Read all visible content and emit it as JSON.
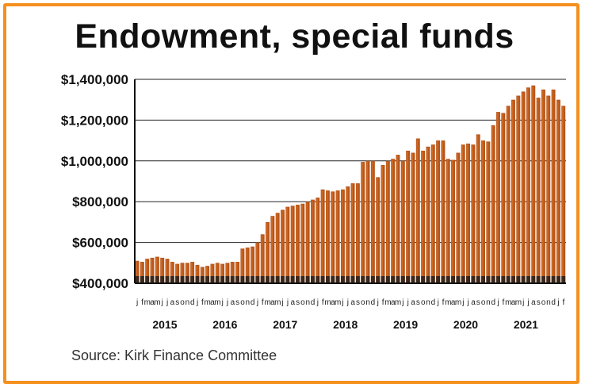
{
  "title": "Endowment, special funds",
  "source": "Source: Kirk Finance Committee",
  "colors": {
    "frame": "#f5901e",
    "bar": "#b8561a",
    "bar_light": "#e07a2e",
    "grid": "#222222"
  },
  "chart_data": {
    "type": "bar",
    "title": "Endowment, special funds",
    "xlabel": "",
    "ylabel": "",
    "ylim": [
      400000,
      1400000
    ],
    "yticks": [
      400000,
      600000,
      800000,
      1000000,
      1200000,
      1400000
    ],
    "ytick_labels": [
      "$400,000",
      "$600,000",
      "$800,000",
      "$1,000,000",
      "$1,200,000",
      "$1,400,000"
    ],
    "grid": true,
    "years": [
      "2015",
      "2016",
      "2017",
      "2018",
      "2019",
      "2020",
      "2021"
    ],
    "month_labels": [
      "j",
      "f",
      "m",
      "a",
      "m",
      "j",
      "j",
      "a",
      "s",
      "o",
      "n",
      "d"
    ],
    "values": [
      510000,
      505000,
      520000,
      525000,
      530000,
      525000,
      520000,
      505000,
      495000,
      500000,
      500000,
      505000,
      490000,
      480000,
      485000,
      495000,
      500000,
      495000,
      500000,
      505000,
      505000,
      570000,
      575000,
      580000,
      600000,
      640000,
      700000,
      730000,
      745000,
      760000,
      775000,
      780000,
      785000,
      790000,
      800000,
      810000,
      820000,
      860000,
      855000,
      850000,
      855000,
      860000,
      875000,
      890000,
      890000,
      995000,
      1000000,
      1000000,
      920000,
      980000,
      1000000,
      1010000,
      1030000,
      1000000,
      1050000,
      1040000,
      1110000,
      1050000,
      1070000,
      1080000,
      1100000,
      1100000,
      1010000,
      1005000,
      1040000,
      1080000,
      1085000,
      1080000,
      1130000,
      1100000,
      1095000,
      1175000,
      1240000,
      1235000,
      1270000,
      1300000,
      1320000,
      1340000,
      1360000,
      1370000,
      1310000,
      1350000,
      1320000,
      1350000,
      1300000,
      1270000
    ]
  }
}
